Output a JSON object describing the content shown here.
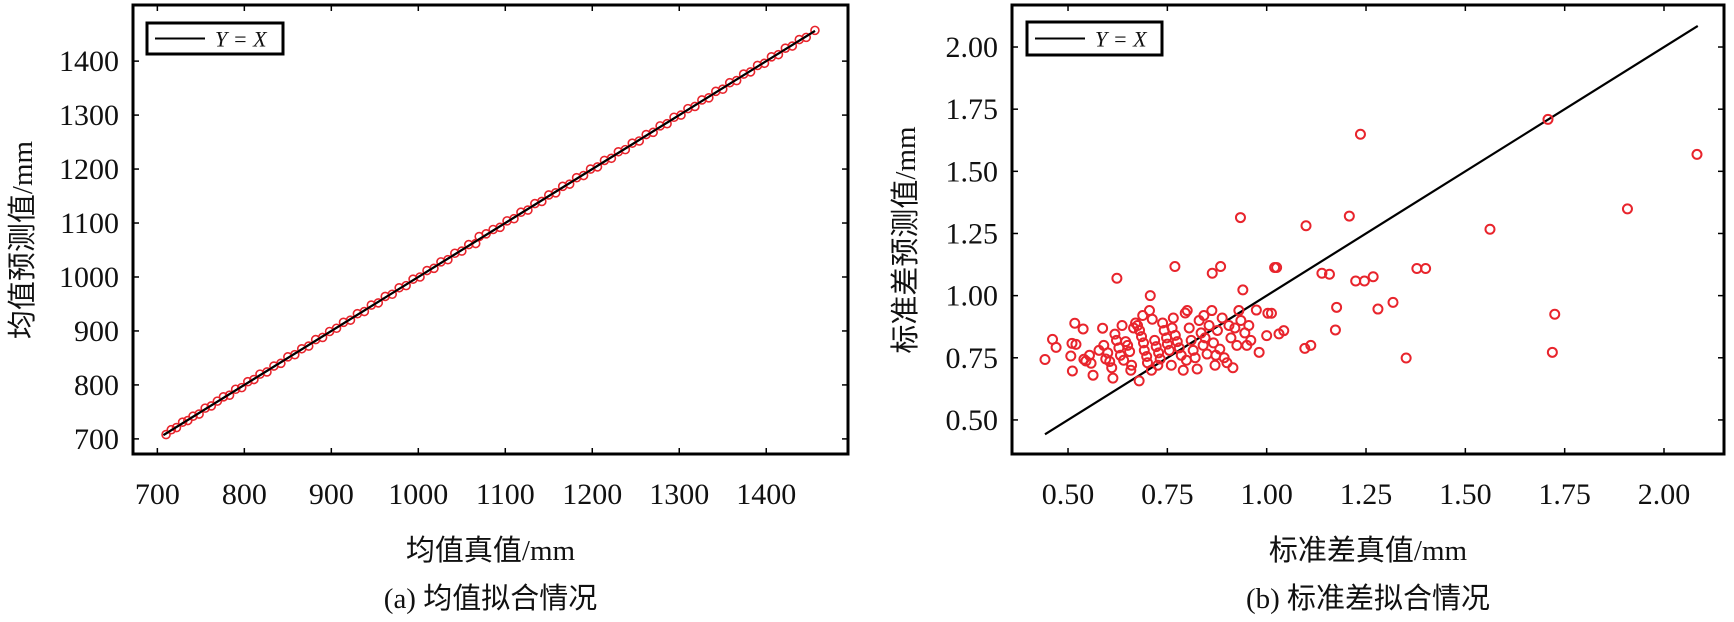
{
  "chart_data": [
    {
      "type": "scatter",
      "id": "a",
      "caption": "(a) 均值拟合情况",
      "xlabel": "均值真值/mm",
      "ylabel": "均值预测值/mm",
      "xlim": [
        672,
        1494
      ],
      "ylim": [
        672,
        1504
      ],
      "xticks": [
        700,
        800,
        900,
        1000,
        1100,
        1200,
        1300,
        1400
      ],
      "yticks": [
        700,
        800,
        900,
        1000,
        1100,
        1200,
        1300,
        1400
      ],
      "xtick_labels": [
        "700",
        "800",
        "900",
        "1000",
        "1100",
        "1200",
        "1300",
        "1400"
      ],
      "ytick_labels": [
        "700",
        "800",
        "900",
        "1000",
        "1100",
        "1200",
        "1300",
        "1400"
      ],
      "legend": {
        "label": "Y = X",
        "placement": "top-left"
      },
      "reference_line": {
        "from": 707,
        "to": 1456
      },
      "marker_color": "#e8242c",
      "line_color": "#000000",
      "points": [
        [
          710,
          708
        ],
        [
          716,
          717
        ],
        [
          722,
          721
        ],
        [
          729,
          731
        ],
        [
          735,
          734
        ],
        [
          741,
          742
        ],
        [
          748,
          746
        ],
        [
          755,
          757
        ],
        [
          762,
          761
        ],
        [
          769,
          770
        ],
        [
          776,
          778
        ],
        [
          783,
          781
        ],
        [
          790,
          792
        ],
        [
          797,
          795
        ],
        [
          804,
          806
        ],
        [
          811,
          810
        ],
        [
          818,
          820
        ],
        [
          826,
          824
        ],
        [
          834,
          835
        ],
        [
          842,
          840
        ],
        [
          850,
          852
        ],
        [
          858,
          856
        ],
        [
          866,
          867
        ],
        [
          874,
          872
        ],
        [
          882,
          884
        ],
        [
          890,
          888
        ],
        [
          898,
          899
        ],
        [
          906,
          905
        ],
        [
          914,
          916
        ],
        [
          922,
          920
        ],
        [
          930,
          932
        ],
        [
          938,
          936
        ],
        [
          946,
          948
        ],
        [
          954,
          952
        ],
        [
          962,
          964
        ],
        [
          970,
          968
        ],
        [
          978,
          980
        ],
        [
          986,
          984
        ],
        [
          994,
          996
        ],
        [
          1002,
          1000
        ],
        [
          1010,
          1012
        ],
        [
          1018,
          1016
        ],
        [
          1026,
          1028
        ],
        [
          1034,
          1032
        ],
        [
          1042,
          1044
        ],
        [
          1050,
          1048
        ],
        [
          1058,
          1060
        ],
        [
          1066,
          1062
        ],
        [
          1070,
          1075
        ],
        [
          1078,
          1080
        ],
        [
          1086,
          1088
        ],
        [
          1094,
          1092
        ],
        [
          1102,
          1104
        ],
        [
          1110,
          1108
        ],
        [
          1118,
          1120
        ],
        [
          1126,
          1124
        ],
        [
          1134,
          1136
        ],
        [
          1142,
          1140
        ],
        [
          1150,
          1152
        ],
        [
          1158,
          1156
        ],
        [
          1166,
          1168
        ],
        [
          1174,
          1172
        ],
        [
          1182,
          1184
        ],
        [
          1190,
          1188
        ],
        [
          1198,
          1200
        ],
        [
          1206,
          1204
        ],
        [
          1214,
          1216
        ],
        [
          1222,
          1220
        ],
        [
          1230,
          1232
        ],
        [
          1238,
          1236
        ],
        [
          1246,
          1248
        ],
        [
          1254,
          1252
        ],
        [
          1262,
          1264
        ],
        [
          1270,
          1268
        ],
        [
          1278,
          1280
        ],
        [
          1286,
          1284
        ],
        [
          1294,
          1296
        ],
        [
          1302,
          1300
        ],
        [
          1310,
          1312
        ],
        [
          1318,
          1316
        ],
        [
          1326,
          1328
        ],
        [
          1334,
          1332
        ],
        [
          1342,
          1344
        ],
        [
          1350,
          1348
        ],
        [
          1358,
          1360
        ],
        [
          1366,
          1364
        ],
        [
          1374,
          1376
        ],
        [
          1382,
          1380
        ],
        [
          1390,
          1392
        ],
        [
          1398,
          1396
        ],
        [
          1406,
          1408
        ],
        [
          1414,
          1412
        ],
        [
          1422,
          1424
        ],
        [
          1430,
          1428
        ],
        [
          1438,
          1440
        ],
        [
          1446,
          1444
        ],
        [
          1456,
          1457
        ]
      ]
    },
    {
      "type": "scatter",
      "id": "b",
      "caption": "(b) 标准差拟合情况",
      "xlabel": "标准差真值/mm",
      "ylabel": "标准差预测值/mm",
      "xlim": [
        0.359,
        2.151
      ],
      "ylim": [
        0.363,
        2.169
      ],
      "xticks": [
        0.5,
        0.75,
        1.0,
        1.25,
        1.5,
        1.75,
        2.0
      ],
      "yticks": [
        0.5,
        0.75,
        1.0,
        1.25,
        1.5,
        1.75,
        2.0
      ],
      "xtick_labels": [
        "0.50",
        "0.75",
        "1.00",
        "1.25",
        "1.50",
        "1.75",
        "2.00"
      ],
      "ytick_labels": [
        "0.50",
        "0.75",
        "1.00",
        "1.25",
        "1.50",
        "1.75",
        "2.00"
      ],
      "legend": {
        "label": "Y = X",
        "placement": "top-left"
      },
      "reference_line": {
        "from": 0.442,
        "to": 2.085
      },
      "marker_color": "#e8242c",
      "line_color": "#000000",
      "points": [
        [
          1.708,
          1.709
        ],
        [
          1.236,
          1.649
        ],
        [
          2.083,
          1.568
        ],
        [
          1.908,
          1.349
        ],
        [
          1.562,
          1.267
        ],
        [
          1.208,
          1.32
        ],
        [
          1.099,
          1.281
        ],
        [
          0.934,
          1.314
        ],
        [
          0.769,
          1.117
        ],
        [
          0.884,
          1.117
        ],
        [
          0.863,
          1.09
        ],
        [
          1.02,
          1.113
        ],
        [
          1.025,
          1.113
        ],
        [
          1.139,
          1.09
        ],
        [
          1.158,
          1.086
        ],
        [
          1.224,
          1.059
        ],
        [
          1.246,
          1.059
        ],
        [
          1.268,
          1.076
        ],
        [
          1.378,
          1.109
        ],
        [
          1.4,
          1.109
        ],
        [
          0.623,
          1.07
        ],
        [
          0.94,
          1.023
        ],
        [
          0.707,
          1.0
        ],
        [
          1.318,
          0.973
        ],
        [
          1.28,
          0.946
        ],
        [
          1.176,
          0.953
        ],
        [
          1.173,
          0.862
        ],
        [
          1.725,
          0.925
        ],
        [
          1.719,
          0.772
        ],
        [
          1.351,
          0.749
        ],
        [
          1.096,
          0.788
        ],
        [
          1.111,
          0.8
        ],
        [
          1.043,
          0.859
        ],
        [
          1.031,
          0.846
        ],
        [
          1.0,
          0.839
        ],
        [
          1.003,
          0.929
        ],
        [
          1.012,
          0.929
        ],
        [
          0.974,
          0.942
        ],
        [
          0.981,
          0.772
        ],
        [
          0.442,
          0.743
        ],
        [
          0.461,
          0.824
        ],
        [
          0.47,
          0.792
        ],
        [
          0.51,
          0.808
        ],
        [
          0.52,
          0.804
        ],
        [
          0.507,
          0.757
        ],
        [
          0.511,
          0.697
        ],
        [
          0.517,
          0.889
        ],
        [
          0.538,
          0.866
        ],
        [
          0.563,
          0.68
        ],
        [
          0.554,
          0.76
        ],
        [
          0.545,
          0.737
        ],
        [
          0.54,
          0.744
        ],
        [
          0.558,
          0.728
        ],
        [
          0.587,
          0.869
        ],
        [
          0.613,
          0.668
        ],
        [
          0.679,
          0.657
        ],
        [
          0.59,
          0.8
        ],
        [
          0.6,
          0.77
        ],
        [
          0.605,
          0.735
        ],
        [
          0.61,
          0.71
        ],
        [
          0.618,
          0.845
        ],
        [
          0.622,
          0.82
        ],
        [
          0.628,
          0.79
        ],
        [
          0.632,
          0.76
        ],
        [
          0.64,
          0.74
        ],
        [
          0.645,
          0.815
        ],
        [
          0.65,
          0.8
        ],
        [
          0.655,
          0.775
        ],
        [
          0.66,
          0.72
        ],
        [
          0.665,
          0.87
        ],
        [
          0.67,
          0.89
        ],
        [
          0.675,
          0.88
        ],
        [
          0.68,
          0.86
        ],
        [
          0.685,
          0.835
        ],
        [
          0.69,
          0.81
        ],
        [
          0.692,
          0.78
        ],
        [
          0.698,
          0.755
        ],
        [
          0.7,
          0.73
        ],
        [
          0.705,
          0.94
        ],
        [
          0.71,
          0.7
        ],
        [
          0.712,
          0.905
        ],
        [
          0.718,
          0.82
        ],
        [
          0.722,
          0.795
        ],
        [
          0.728,
          0.77
        ],
        [
          0.732,
          0.745
        ],
        [
          0.738,
          0.89
        ],
        [
          0.742,
          0.86
        ],
        [
          0.748,
          0.83
        ],
        [
          0.75,
          0.805
        ],
        [
          0.755,
          0.78
        ],
        [
          0.76,
          0.72
        ],
        [
          0.765,
          0.91
        ],
        [
          0.77,
          0.84
        ],
        [
          0.775,
          0.815
        ],
        [
          0.78,
          0.79
        ],
        [
          0.785,
          0.76
        ],
        [
          0.79,
          0.7
        ],
        [
          0.795,
          0.93
        ],
        [
          0.8,
          0.94
        ],
        [
          0.805,
          0.87
        ],
        [
          0.81,
          0.82
        ],
        [
          0.815,
          0.78
        ],
        [
          0.82,
          0.75
        ],
        [
          0.825,
          0.705
        ],
        [
          0.83,
          0.9
        ],
        [
          0.835,
          0.85
        ],
        [
          0.84,
          0.8
        ],
        [
          0.845,
          0.83
        ],
        [
          0.85,
          0.765
        ],
        [
          0.855,
          0.88
        ],
        [
          0.862,
          0.94
        ],
        [
          0.866,
          0.81
        ],
        [
          0.87,
          0.72
        ],
        [
          0.876,
          0.86
        ],
        [
          0.882,
          0.785
        ],
        [
          0.888,
          0.91
        ],
        [
          0.893,
          0.75
        ],
        [
          0.9,
          0.73
        ],
        [
          0.905,
          0.88
        ],
        [
          0.91,
          0.83
        ],
        [
          0.915,
          0.71
        ],
        [
          0.92,
          0.87
        ],
        [
          0.925,
          0.8
        ],
        [
          0.93,
          0.94
        ],
        [
          0.935,
          0.9
        ],
        [
          0.945,
          0.85
        ],
        [
          0.95,
          0.8
        ],
        [
          0.955,
          0.88
        ],
        [
          0.96,
          0.82
        ],
        [
          0.578,
          0.78
        ],
        [
          0.595,
          0.745
        ],
        [
          0.636,
          0.88
        ],
        [
          0.658,
          0.7
        ],
        [
          0.688,
          0.92
        ],
        [
          0.726,
          0.72
        ],
        [
          0.762,
          0.87
        ],
        [
          0.798,
          0.74
        ],
        [
          0.842,
          0.92
        ],
        [
          0.872,
          0.76
        ]
      ]
    }
  ]
}
